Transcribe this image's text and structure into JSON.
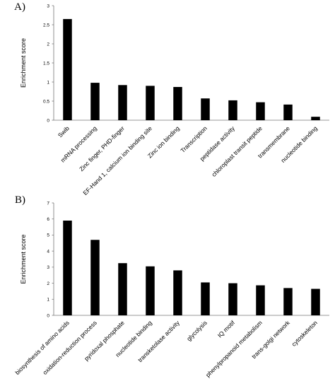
{
  "chart_data": [
    {
      "panel": "A)",
      "type": "bar",
      "ylabel": "Enrichment score",
      "ylim": [
        0,
        3
      ],
      "yticks": [
        "0",
        "0.5",
        "1",
        "1.5",
        "2",
        "2.5",
        "3"
      ],
      "categories": [
        "Swib",
        "mRNA processing",
        "Zinc finger, PHD-finger",
        "EF-Hand 1, calcium ion binding site",
        "Zinc ion binding",
        "Transcription",
        "peptidase activity",
        "chloroplast transit peptide",
        "transmembrane",
        "nucleotide binding"
      ],
      "values": [
        2.65,
        0.98,
        0.92,
        0.9,
        0.87,
        0.57,
        0.52,
        0.47,
        0.41,
        0.09
      ],
      "bar_color": "#000000",
      "grid": false
    },
    {
      "panel": "B)",
      "type": "bar",
      "ylabel": "Enrichment score",
      "ylim": [
        0,
        7
      ],
      "yticks": [
        "0",
        "1",
        "2",
        "3",
        "4",
        "5",
        "6",
        "7"
      ],
      "categories": [
        "biosynthesis of amino acids",
        "oxidation-reduction process",
        "pyridoxal phosphate",
        "nucleotide binding",
        "transketolase activity",
        "glycolysis",
        "IQ motif",
        "phenylpropanoid metabolism",
        "trans-golgi network",
        "cytoskeleton"
      ],
      "values": [
        5.9,
        4.7,
        3.25,
        3.05,
        2.8,
        2.05,
        2.0,
        1.87,
        1.7,
        1.65
      ],
      "bar_color": "#000000",
      "grid": false
    }
  ]
}
